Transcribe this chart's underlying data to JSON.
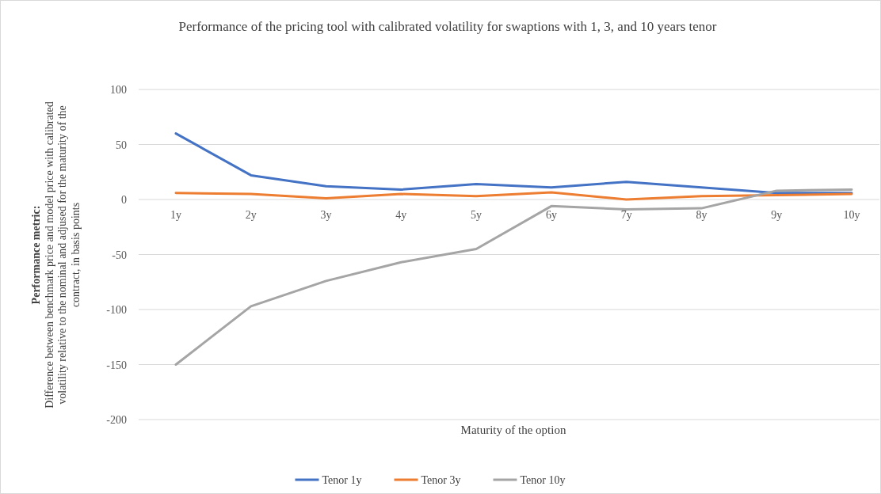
{
  "chart_data": {
    "type": "line",
    "title": "Performance of the pricing tool with calibrated volatility for swaptions with 1, 3, and 10 years tenor",
    "xlabel": "Maturity of the option",
    "ylabel": "Performance metric:\nDifference between benchmark price and model price  with calibrated\nvolatility relative to the nominal and adjused for the maturity of the\ncontract, in basis points",
    "categories": [
      "1y",
      "2y",
      "3y",
      "4y",
      "5y",
      "6y",
      "7y",
      "8y",
      "9y",
      "10y"
    ],
    "series": [
      {
        "name": "Tenor 1y",
        "color": "#4472c4",
        "values": [
          60,
          22,
          12,
          9,
          14,
          11,
          16,
          11,
          6,
          6
        ]
      },
      {
        "name": "Tenor 3y",
        "color": "#ed7d31",
        "values": [
          6,
          5,
          1,
          5,
          3,
          6.5,
          0,
          3,
          4,
          5
        ]
      },
      {
        "name": "Tenor 10y",
        "color": "#a5a5a5",
        "values": [
          -150,
          -97,
          -74,
          -57,
          -45,
          -6,
          -9,
          -8,
          8,
          9
        ]
      }
    ],
    "ylim": [
      -200,
      100
    ],
    "yticks": [
      -200,
      -150,
      -100,
      -50,
      0,
      50,
      100
    ],
    "grid": "y",
    "legend": "bottom",
    "marker": "none",
    "line_style": "solid"
  }
}
